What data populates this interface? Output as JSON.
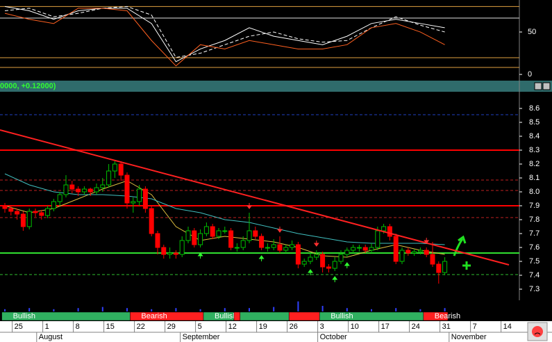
{
  "chart_data": {
    "type": "candlestick",
    "header": "0000, +0.12000)",
    "ylim": [
      7.22,
      8.72
    ],
    "yticks": [
      7.3,
      7.4,
      7.5,
      7.6,
      7.7,
      7.8,
      7.9,
      {
        "value": 8,
        "label": "8.0"
      },
      8.1,
      8.2,
      8.3,
      8.4,
      8.5,
      8.6
    ],
    "up_color": "#00c000",
    "down_color": "#ff0000",
    "ohlc": [
      [
        7.9,
        7.92,
        7.85,
        7.88
      ],
      [
        7.88,
        7.9,
        7.83,
        7.86
      ],
      [
        7.86,
        7.88,
        7.8,
        7.84
      ],
      [
        7.84,
        7.86,
        7.72,
        7.75
      ],
      [
        7.75,
        7.88,
        7.73,
        7.86
      ],
      [
        7.86,
        7.88,
        7.82,
        7.85
      ],
      [
        7.85,
        7.87,
        7.8,
        7.83
      ],
      [
        7.83,
        7.9,
        7.81,
        7.88
      ],
      [
        7.88,
        7.95,
        7.86,
        7.93
      ],
      [
        7.93,
        8.0,
        7.9,
        7.98
      ],
      [
        7.98,
        8.12,
        7.96,
        8.05
      ],
      [
        8.05,
        8.08,
        7.99,
        8.02
      ],
      [
        8.02,
        8.04,
        7.97,
        8.0
      ],
      [
        8.0,
        8.04,
        7.98,
        8.02
      ],
      [
        8.02,
        8.03,
        7.97,
        8.0
      ],
      [
        8.0,
        8.06,
        7.98,
        8.03
      ],
      [
        8.03,
        8.1,
        8.0,
        8.05
      ],
      [
        8.05,
        8.2,
        8.03,
        8.15
      ],
      [
        8.15,
        8.22,
        8.1,
        8.2
      ],
      [
        8.2,
        8.22,
        8.08,
        8.12
      ],
      [
        8.12,
        8.14,
        7.88,
        7.92
      ],
      [
        7.92,
        7.96,
        7.85,
        7.93
      ],
      [
        7.93,
        8.05,
        7.9,
        8.02
      ],
      [
        8.02,
        8.04,
        7.85,
        7.88
      ],
      [
        7.88,
        7.9,
        7.68,
        7.7
      ],
      [
        7.7,
        7.72,
        7.55,
        7.6
      ],
      [
        7.6,
        7.62,
        7.52,
        7.55
      ],
      [
        7.55,
        7.6,
        7.52,
        7.56
      ],
      [
        7.56,
        7.58,
        7.52,
        7.55
      ],
      [
        7.55,
        7.68,
        7.53,
        7.65
      ],
      [
        7.65,
        7.75,
        7.63,
        7.72
      ],
      [
        7.72,
        7.74,
        7.6,
        7.62
      ],
      [
        7.62,
        7.73,
        7.6,
        7.7
      ],
      [
        7.7,
        7.78,
        7.68,
        7.75
      ],
      [
        7.75,
        7.77,
        7.66,
        7.68
      ],
      [
        7.68,
        7.74,
        7.66,
        7.72
      ],
      [
        7.72,
        7.75,
        7.7,
        7.72
      ],
      [
        7.72,
        7.74,
        7.58,
        7.6
      ],
      [
        7.6,
        7.63,
        7.57,
        7.6
      ],
      [
        7.6,
        7.68,
        7.58,
        7.65
      ],
      [
        7.65,
        7.85,
        7.63,
        7.72
      ],
      [
        7.72,
        7.75,
        7.66,
        7.68
      ],
      [
        7.68,
        7.7,
        7.58,
        7.6
      ],
      [
        7.6,
        7.63,
        7.57,
        7.6
      ],
      [
        7.6,
        7.66,
        7.58,
        7.62
      ],
      [
        7.62,
        7.68,
        7.56,
        7.58
      ],
      [
        7.58,
        7.62,
        7.56,
        7.6
      ],
      [
        7.6,
        7.65,
        7.58,
        7.62
      ],
      [
        7.62,
        7.64,
        7.45,
        7.48
      ],
      [
        7.48,
        7.52,
        7.46,
        7.5
      ],
      [
        7.5,
        7.56,
        7.48,
        7.53
      ],
      [
        7.53,
        7.58,
        7.51,
        7.55
      ],
      [
        7.55,
        7.57,
        7.42,
        7.46
      ],
      [
        7.46,
        7.48,
        7.42,
        7.45
      ],
      [
        7.45,
        7.53,
        7.43,
        7.5
      ],
      [
        7.5,
        7.58,
        7.48,
        7.55
      ],
      [
        7.55,
        7.6,
        7.53,
        7.58
      ],
      [
        7.58,
        7.62,
        7.56,
        7.6
      ],
      [
        7.6,
        7.62,
        7.57,
        7.6
      ],
      [
        7.6,
        7.62,
        7.56,
        7.58
      ],
      [
        7.58,
        7.63,
        7.56,
        7.6
      ],
      [
        7.6,
        7.75,
        7.58,
        7.72
      ],
      [
        7.72,
        7.77,
        7.7,
        7.75
      ],
      [
        7.75,
        7.77,
        7.65,
        7.68
      ],
      [
        7.68,
        7.7,
        7.48,
        7.5
      ],
      [
        7.5,
        7.6,
        7.48,
        7.58
      ],
      [
        7.58,
        7.6,
        7.54,
        7.56
      ],
      [
        7.56,
        7.59,
        7.54,
        7.57
      ],
      [
        7.57,
        7.6,
        7.55,
        7.58
      ],
      [
        7.58,
        7.6,
        7.53,
        7.55
      ],
      [
        7.55,
        7.64,
        7.46,
        7.48
      ],
      [
        7.48,
        7.5,
        7.34,
        7.42
      ],
      [
        7.42,
        7.53,
        7.4,
        7.5
      ]
    ],
    "x": [
      0,
      4,
      8,
      12,
      16,
      20,
      24,
      28,
      32,
      36,
      40,
      44,
      48,
      52,
      56,
      60,
      64,
      68,
      72
    ],
    "averages": [
      {
        "color": "#e0c040",
        "values": [
          7.9,
          7.85,
          7.88,
          7.95,
          8.02,
          8.08,
          7.98,
          7.75,
          7.65,
          7.68,
          7.66,
          7.64,
          7.6,
          7.54,
          7.53,
          7.58,
          7.62,
          7.58,
          7.55
        ]
      },
      {
        "color": "#40c0c0",
        "values": [
          8.13,
          8.05,
          8.0,
          7.98,
          7.98,
          7.97,
          7.95,
          7.88,
          7.85,
          7.8,
          7.78,
          7.74,
          7.7,
          7.67,
          7.64,
          7.63,
          7.63,
          7.63,
          7.62
        ]
      }
    ],
    "levels": [
      {
        "value": 8.555,
        "color": "#2040c0",
        "dashed": true
      },
      {
        "value": 8.3,
        "color": "#ff0000",
        "dashed": false
      },
      {
        "value": 8.085,
        "color": "#c02020",
        "dashed": true
      },
      {
        "value": 8.01,
        "color": "#c02020",
        "dashed": true
      },
      {
        "value": 7.9,
        "color": "#ff0000",
        "dashed": false
      },
      {
        "value": 7.815,
        "color": "#c02020",
        "dashed": true
      },
      {
        "value": 7.56,
        "color": "#30e030",
        "dashed": false
      },
      {
        "value": 7.405,
        "color": "#30c030",
        "dashed": true
      }
    ],
    "trendline": {
      "x": [
        -0.8,
        82.5
      ],
      "values": [
        8.445,
        7.475
      ],
      "color": "#ff2020"
    },
    "signals_up": [
      32,
      42,
      50,
      54,
      56
    ],
    "signals_down": [
      40,
      45,
      51,
      69
    ],
    "oscillator": {
      "ylim": [
        -6.5,
        87.7
      ],
      "yticks": [
        0,
        50
      ],
      "levels": [
        {
          "value": 80,
          "color": "#e0a040"
        },
        {
          "value": 66.4,
          "color": "#e0e0e0"
        },
        {
          "value": 19.7,
          "color": "#e0a040"
        },
        {
          "value": 8.2,
          "color": "#e0a040"
        }
      ],
      "series": [
        {
          "color": "#ffffff",
          "dashed": false,
          "values": [
            80,
            75,
            65,
            75,
            78,
            78,
            60,
            15,
            30,
            40,
            55,
            45,
            40,
            35,
            45,
            60,
            65,
            60,
            55
          ]
        },
        {
          "color": "#ffffff",
          "dashed": true,
          "values": [
            75,
            78,
            68,
            72,
            78,
            80,
            70,
            20,
            25,
            35,
            45,
            50,
            42,
            38,
            40,
            55,
            68,
            58,
            50
          ]
        },
        {
          "color": "#ff6020",
          "dashed": false,
          "values": [
            72,
            65,
            60,
            78,
            78,
            75,
            40,
            10,
            35,
            30,
            40,
            35,
            30,
            30,
            35,
            55,
            60,
            50,
            35
          ]
        }
      ]
    },
    "volume": {
      "ylim": [
        0,
        10
      ],
      "color": "#3040ff",
      "values": [
        2,
        3,
        2,
        3,
        4,
        3,
        2,
        3,
        2,
        3,
        3,
        4,
        9,
        5,
        3,
        2,
        3,
        2,
        3
      ]
    },
    "trend": [
      {
        "label": "Bullish",
        "from": 0,
        "to": 21,
        "color": "#30b060"
      },
      {
        "label": "Bearish",
        "from": 21,
        "to": 33,
        "color": "#ff2020"
      },
      {
        "label": "Bullish",
        "from": 33,
        "to": 38,
        "color": "#30b060"
      },
      {
        "from": 38,
        "to": 39,
        "color": "#ff2020"
      },
      {
        "from": 39,
        "to": 47,
        "color": "#30b060"
      },
      {
        "from": 47,
        "to": 52,
        "color": "#ff2020"
      },
      {
        "label": "Bullish",
        "from": 52,
        "to": 69,
        "color": "#30b060"
      },
      {
        "label": "Bearish",
        "from": 69,
        "to": 73,
        "color": "#ff2020"
      }
    ],
    "xticks": [
      {
        "value": 2,
        "label": "25"
      },
      {
        "value": 7,
        "label": "1"
      },
      {
        "value": 12,
        "label": "8"
      },
      {
        "value": 17,
        "label": "15"
      },
      {
        "value": 22,
        "label": "22"
      },
      {
        "value": 27,
        "label": "29"
      },
      {
        "value": 32,
        "label": "5"
      },
      {
        "value": 37,
        "label": "12"
      },
      {
        "value": 42,
        "label": "19"
      },
      {
        "value": 47,
        "label": "26"
      },
      {
        "value": 52,
        "label": "3"
      },
      {
        "value": 57,
        "label": "10"
      },
      {
        "value": 62,
        "label": "17"
      },
      {
        "value": 67,
        "label": "24"
      },
      {
        "value": 72,
        "label": "31"
      },
      {
        "value": 77,
        "label": "7"
      },
      {
        "value": 82,
        "label": "14"
      }
    ],
    "months": [
      {
        "value": 6,
        "label": "August"
      },
      {
        "value": 29.5,
        "label": "September"
      },
      {
        "value": 52,
        "label": "October"
      },
      {
        "value": 73.5,
        "label": "November"
      }
    ]
  }
}
